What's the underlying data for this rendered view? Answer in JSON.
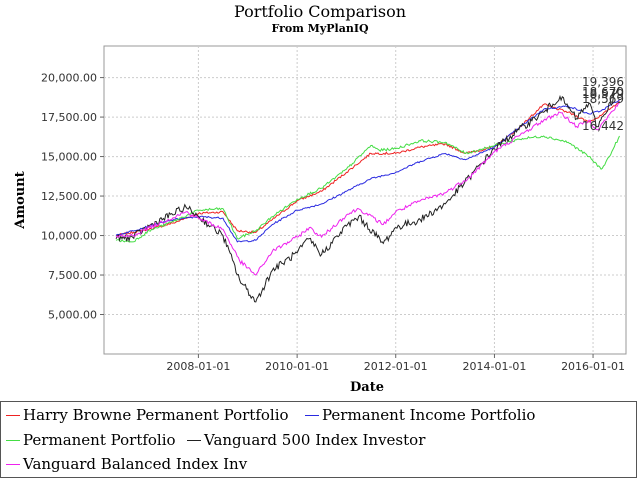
{
  "header": {
    "title": "Portfolio Comparison",
    "subtitle": "From MyPlanIQ"
  },
  "chart_data": {
    "type": "line",
    "title": "Portfolio Comparison",
    "subtitle": "From MyPlanIQ",
    "xlabel": "Date",
    "ylabel": "Amount",
    "xlim": [
      "2006-02-01",
      "2016-09-01"
    ],
    "ylim": [
      2500,
      22000
    ],
    "x_ticks": [
      "2008-01-01",
      "2010-01-01",
      "2012-01-01",
      "2014-01-01",
      "2016-01-01"
    ],
    "y_ticks": [
      5000,
      7500,
      10000,
      12500,
      15000,
      17500,
      20000
    ],
    "y_tick_labels": [
      "5,000.00",
      "7,500.00",
      "10,000.00",
      "12,500.00",
      "15,000.00",
      "17,500.00",
      "20,000.00"
    ],
    "grid": true,
    "legend_position": "bottom",
    "end_labels": [
      "19,396",
      "18,670",
      "18,579",
      "18,569",
      "16,442"
    ],
    "series": [
      {
        "name": "Harry Browne Permanent Portfolio",
        "color": "#ee2222",
        "x": [
          "2006-05-01",
          "2007-01-01",
          "2007-07-01",
          "2008-01-01",
          "2008-07-01",
          "2008-10-15",
          "2009-03-01",
          "2009-07-01",
          "2010-01-01",
          "2010-07-01",
          "2011-01-01",
          "2011-07-01",
          "2012-01-01",
          "2012-07-01",
          "2013-01-01",
          "2013-06-01",
          "2014-01-01",
          "2014-07-01",
          "2015-01-01",
          "2015-07-01",
          "2015-12-01",
          "2016-03-01",
          "2016-07-15"
        ],
        "values": [
          10000,
          10400,
          10800,
          11400,
          11500,
          10300,
          10200,
          11000,
          12200,
          12800,
          14000,
          15200,
          15200,
          15600,
          15800,
          15200,
          15600,
          16800,
          18300,
          17800,
          17200,
          17600,
          18500
        ]
      },
      {
        "name": "Permanent Income Portfolio",
        "color": "#2a2ae0",
        "x": [
          "2006-05-01",
          "2007-01-01",
          "2007-07-01",
          "2008-01-01",
          "2008-07-01",
          "2008-10-15",
          "2009-03-01",
          "2009-07-01",
          "2010-01-01",
          "2010-07-01",
          "2011-01-01",
          "2011-07-01",
          "2012-01-01",
          "2012-07-01",
          "2013-01-01",
          "2013-06-01",
          "2014-01-01",
          "2014-07-01",
          "2015-01-01",
          "2015-07-01",
          "2015-12-01",
          "2016-03-01",
          "2016-07-15"
        ],
        "values": [
          10000,
          10600,
          11000,
          11200,
          11100,
          9600,
          9700,
          10700,
          11600,
          12000,
          12800,
          13600,
          14000,
          14700,
          15200,
          14800,
          15600,
          16800,
          18000,
          18200,
          17700,
          17900,
          18600
        ]
      },
      {
        "name": "Permanent Portfolio",
        "color": "#44dd44",
        "x": [
          "2006-05-01",
          "2006-09-01",
          "2007-01-01",
          "2007-07-01",
          "2008-01-01",
          "2008-07-01",
          "2008-10-15",
          "2009-03-01",
          "2009-07-01",
          "2010-01-01",
          "2010-07-01",
          "2011-01-01",
          "2011-07-01",
          "2011-09-01",
          "2012-01-01",
          "2012-07-01",
          "2013-01-01",
          "2013-06-01",
          "2014-01-01",
          "2014-07-01",
          "2015-01-01",
          "2015-07-01",
          "2015-12-01",
          "2016-03-01",
          "2016-05-01",
          "2016-07-15"
        ],
        "values": [
          9700,
          9600,
          10300,
          10900,
          11600,
          11700,
          9800,
          10300,
          11200,
          12300,
          13000,
          14200,
          15700,
          15400,
          15500,
          16000,
          15900,
          15200,
          15700,
          16100,
          16300,
          15900,
          15000,
          14200,
          15000,
          16300
        ]
      },
      {
        "name": "Vanguard 500 Index Investor",
        "color": "#222222",
        "x": [
          "2006-05-01",
          "2006-09-01",
          "2007-01-01",
          "2007-10-01",
          "2008-01-01",
          "2008-07-01",
          "2008-11-01",
          "2009-03-01",
          "2009-07-01",
          "2010-01-01",
          "2010-04-01",
          "2010-07-01",
          "2011-01-01",
          "2011-04-01",
          "2011-10-01",
          "2012-01-01",
          "2012-07-01",
          "2013-01-01",
          "2013-07-01",
          "2014-01-01",
          "2014-07-01",
          "2015-01-01",
          "2015-05-01",
          "2015-09-01",
          "2015-12-01",
          "2016-02-01",
          "2016-07-15"
        ],
        "values": [
          9800,
          9900,
          10600,
          11800,
          11200,
          10000,
          7200,
          5800,
          7800,
          8900,
          9800,
          8800,
          10600,
          11200,
          9500,
          10500,
          11000,
          12000,
          13700,
          15500,
          16700,
          17800,
          18800,
          17400,
          18400,
          16900,
          19400
        ]
      },
      {
        "name": "Vanguard Balanced Index Inv",
        "color": "#ee22ee",
        "x": [
          "2006-05-01",
          "2006-09-01",
          "2007-01-01",
          "2007-10-01",
          "2008-01-01",
          "2008-07-01",
          "2008-11-01",
          "2009-03-01",
          "2009-07-01",
          "2010-01-01",
          "2010-04-01",
          "2010-07-01",
          "2011-01-01",
          "2011-04-01",
          "2011-10-01",
          "2012-01-01",
          "2012-07-01",
          "2013-01-01",
          "2013-07-01",
          "2014-01-01",
          "2014-07-01",
          "2015-01-01",
          "2015-05-01",
          "2015-09-01",
          "2015-12-01",
          "2016-02-01",
          "2016-07-15"
        ],
        "values": [
          9900,
          10000,
          10500,
          11500,
          11100,
          10400,
          8400,
          7500,
          9000,
          9900,
          10500,
          9900,
          11300,
          11700,
          10700,
          11500,
          12200,
          12700,
          13700,
          15300,
          16300,
          17300,
          17800,
          16900,
          17300,
          16700,
          18400
        ]
      }
    ]
  }
}
